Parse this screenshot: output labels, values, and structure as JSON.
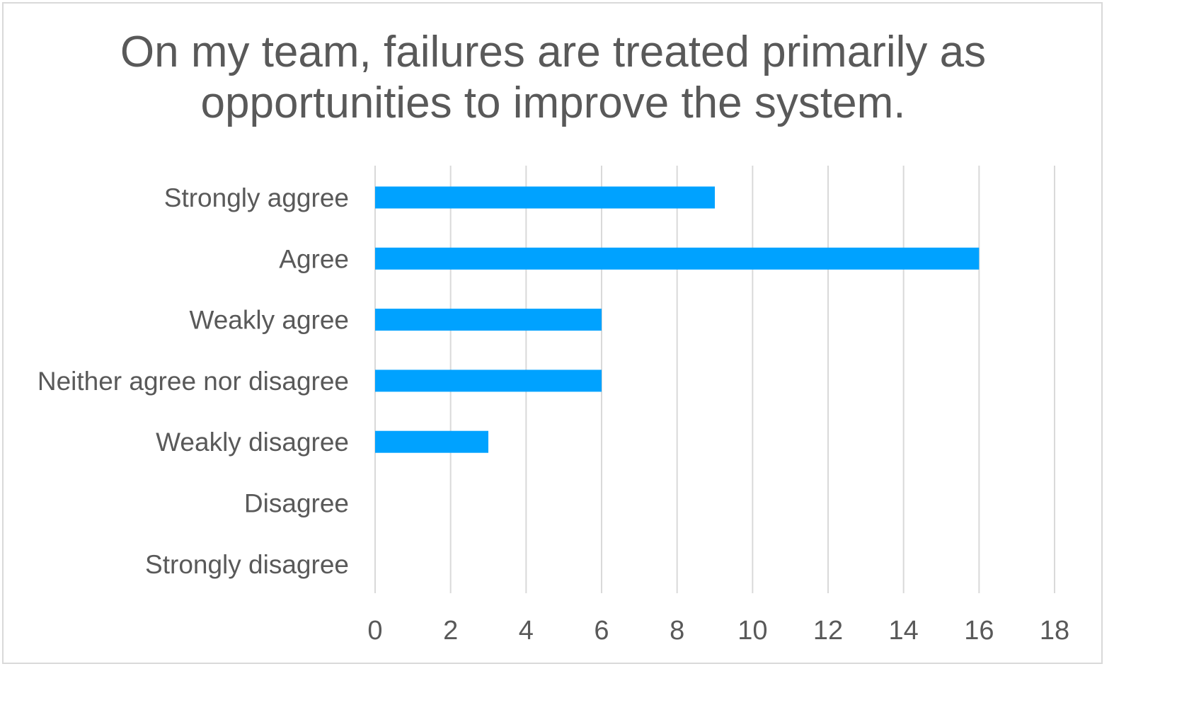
{
  "chart_data": {
    "type": "bar",
    "orientation": "horizontal",
    "title": "On my team, failures are treated primarily as opportunities to improve the system.",
    "categories": [
      "Strongly aggree",
      "Agree",
      "Weakly agree",
      "Neither agree nor disagree",
      "Weakly disagree",
      "Disagree",
      "Strongly disagree"
    ],
    "values": [
      9,
      16,
      6,
      6,
      3,
      0,
      0
    ],
    "xlabel": "",
    "ylabel": "",
    "xlim": [
      0,
      18
    ],
    "xticks": [
      0,
      2,
      4,
      6,
      8,
      10,
      12,
      14,
      16,
      18
    ],
    "grid": "vertical",
    "legend": "none",
    "bar_color": "#00a2ff",
    "grid_color": "#d9d9d9",
    "text_color": "#595959"
  }
}
